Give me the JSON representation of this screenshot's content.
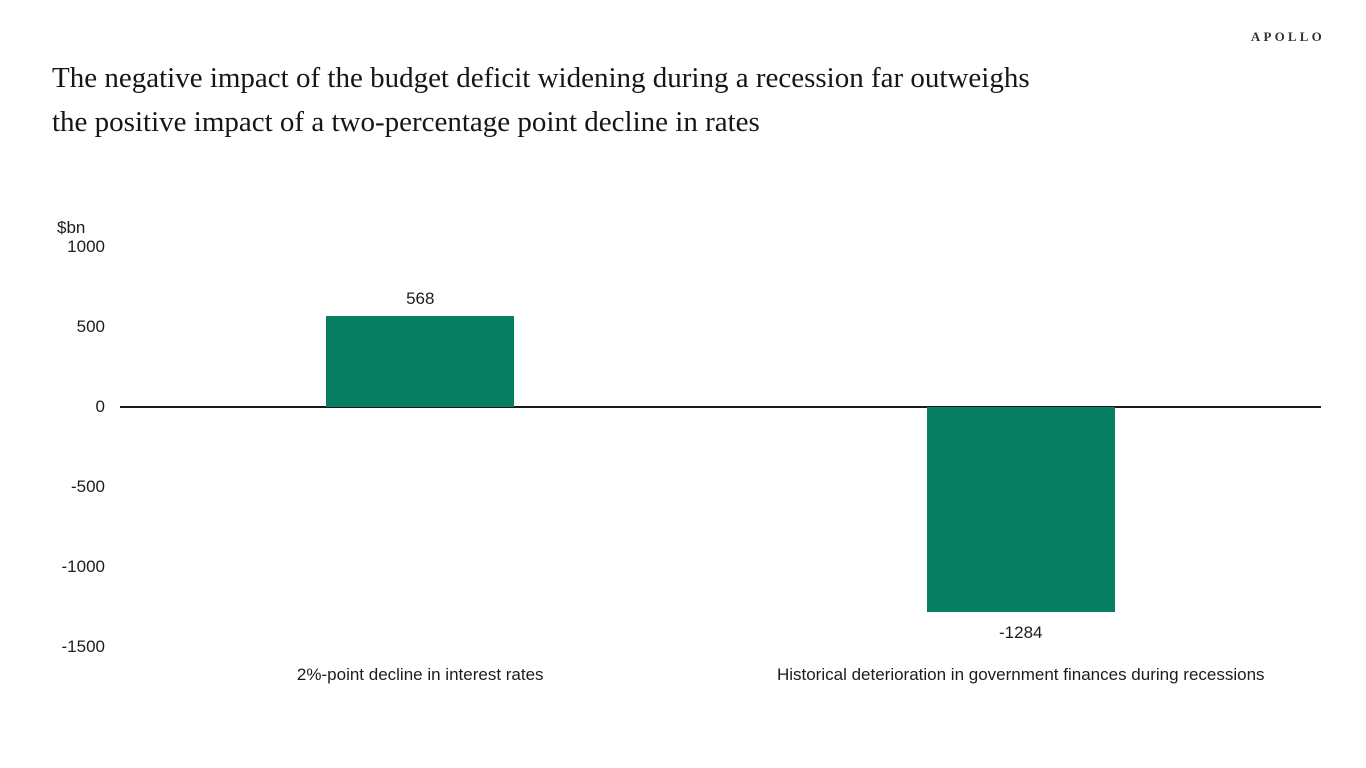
{
  "logo": "APOLLO",
  "header": {
    "title_lines": [
      "The negative impact of the budget deficit widening during a recession far outweighs",
      "the positive impact of a two-percentage point decline in rates"
    ]
  },
  "chart_data": {
    "type": "bar",
    "title": "The negative impact of the budget deficit widening during a recession far outweighs the positive impact of a two-percentage point decline in rates",
    "categories": [
      "2%-point decline in interest rates",
      "Historical deterioration in government finances during recessions"
    ],
    "values": [
      568,
      -1284
    ],
    "data_labels": [
      "568",
      "-1284"
    ],
    "ylabel": "$bn",
    "yticks": [
      1000,
      500,
      0,
      -500,
      -1000,
      -1500
    ],
    "ylim": [
      -1500,
      1000
    ],
    "grid": "off",
    "legend": "none",
    "bar_color": "#077d62",
    "axis_color": "#1a1a1a"
  }
}
